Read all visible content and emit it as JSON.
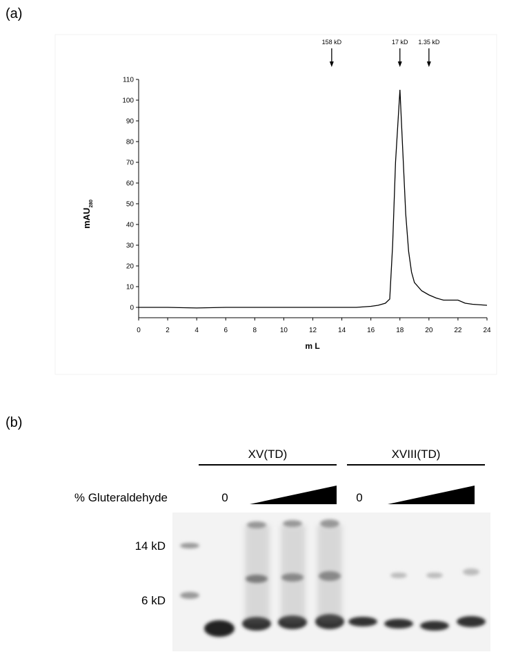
{
  "figure": {
    "panel_labels": [
      "(a)",
      "(b)"
    ]
  },
  "chart_data": {
    "type": "line",
    "x_label": "m L",
    "y_label": "mAU",
    "y_label_subscript": "280",
    "x": [
      0,
      2,
      4,
      6,
      8,
      10,
      12,
      14,
      15,
      16,
      16.5,
      17,
      17.3,
      17.5,
      17.7,
      18,
      18.2,
      18.4,
      18.6,
      18.8,
      19,
      19.5,
      20,
      20.5,
      21,
      21.5,
      22,
      22.5,
      23,
      24
    ],
    "values": [
      0,
      0,
      -0.3,
      0,
      0,
      0,
      0,
      0,
      0,
      0.5,
      1,
      2,
      4,
      30,
      70,
      105,
      75,
      45,
      27,
      17,
      12,
      8,
      6,
      4.5,
      3.5,
      3.5,
      3.5,
      2,
      1.5,
      1
    ],
    "color": "#000000",
    "xlim": [
      0,
      24
    ],
    "ylim": [
      -5,
      110
    ],
    "xticks": [
      0,
      2,
      4,
      6,
      8,
      10,
      12,
      14,
      16,
      18,
      20,
      22,
      24
    ],
    "yticks": [
      0,
      10,
      20,
      30,
      40,
      50,
      60,
      70,
      80,
      90,
      100,
      110
    ],
    "markers": [
      {
        "label": "158 kD",
        "x": 13.3
      },
      {
        "label": "17 kD",
        "x": 18
      },
      {
        "label": "1.35 kD",
        "x": 20
      }
    ]
  },
  "gel": {
    "groups": [
      "XV(TD)",
      "XVIII(TD)"
    ],
    "reagent": "% Gluteraldehyde",
    "zero_labels": [
      "0",
      "0"
    ],
    "size_labels": [
      "14 kD",
      "6 kD"
    ]
  }
}
